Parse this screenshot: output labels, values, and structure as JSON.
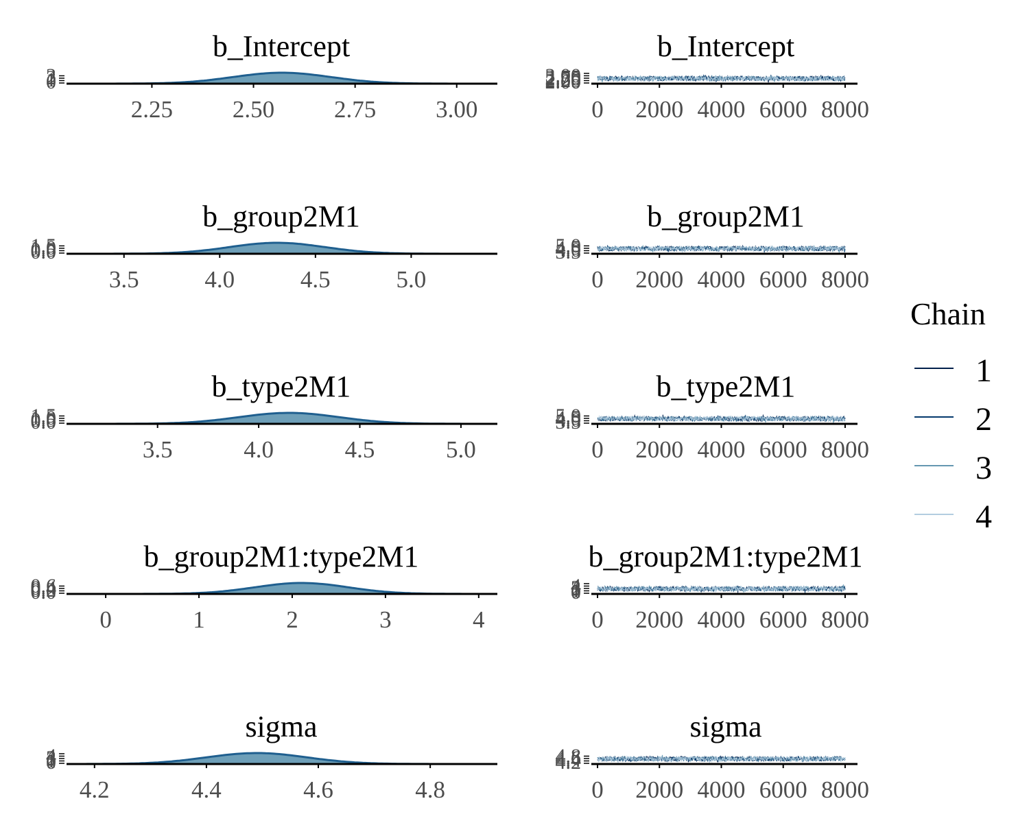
{
  "legend": {
    "title": "Chain",
    "entries": [
      {
        "label": "1",
        "color": "#011f4b"
      },
      {
        "label": "2",
        "color": "#03396c"
      },
      {
        "label": "3",
        "color": "#6497b1"
      },
      {
        "label": "4",
        "color": "#b3cde0"
      }
    ]
  },
  "colors": {
    "density_fill": "#6e9fb8",
    "density_line": "#1f5f8f",
    "axis": "#000000",
    "tick_label": "#4d4d4d",
    "title": "#000000"
  },
  "chart_data": [
    {
      "type": "area",
      "panel": "density",
      "title": "b_Intercept",
      "xlim": [
        2.04,
        3.1
      ],
      "x_ticks": [
        "2.25",
        "2.50",
        "2.75",
        "3.00"
      ],
      "x_tick_values": [
        2.25,
        2.5,
        2.75,
        3.0
      ],
      "y_ticks": [
        "0",
        "1",
        "2",
        "3"
      ],
      "density": {
        "mean": 2.57,
        "sd": 0.12
      }
    },
    {
      "type": "line",
      "panel": "trace",
      "title": "b_Intercept",
      "x_ticks": [
        "0",
        "2000",
        "4000",
        "6000",
        "8000"
      ],
      "x_tick_values": [
        0,
        2000,
        4000,
        6000,
        8000
      ],
      "xlim": [
        -200,
        8400
      ],
      "y_ticks": [
        "2.00",
        "2.25",
        "2.50",
        "2.75",
        "3.00"
      ],
      "iterations": 8000
    },
    {
      "type": "area",
      "panel": "density",
      "title": "b_group2M1",
      "xlim": [
        3.2,
        5.45
      ],
      "x_ticks": [
        "3.5",
        "4.0",
        "4.5",
        "5.0"
      ],
      "x_tick_values": [
        3.5,
        4.0,
        4.5,
        5.0
      ],
      "y_ticks": [
        "0.0",
        "0.5",
        "1.0",
        "1.5"
      ],
      "density": {
        "mean": 4.3,
        "sd": 0.25
      }
    },
    {
      "type": "line",
      "panel": "trace",
      "title": "b_group2M1",
      "x_ticks": [
        "0",
        "2000",
        "4000",
        "6000",
        "8000"
      ],
      "x_tick_values": [
        0,
        2000,
        4000,
        6000,
        8000
      ],
      "xlim": [
        -200,
        8400
      ],
      "y_ticks": [
        "3.5",
        "4.0",
        "4.5",
        "5.0"
      ],
      "iterations": 8000
    },
    {
      "type": "area",
      "panel": "density",
      "title": "b_type2M1",
      "xlim": [
        3.05,
        5.18
      ],
      "x_ticks": [
        "3.5",
        "4.0",
        "4.5",
        "5.0"
      ],
      "x_tick_values": [
        3.5,
        4.0,
        4.5,
        5.0
      ],
      "y_ticks": [
        "0.0",
        "0.5",
        "1.0",
        "1.5"
      ],
      "density": {
        "mean": 4.15,
        "sd": 0.25
      }
    },
    {
      "type": "line",
      "panel": "trace",
      "title": "b_type2M1",
      "x_ticks": [
        "0",
        "2000",
        "4000",
        "6000",
        "8000"
      ],
      "x_tick_values": [
        0,
        2000,
        4000,
        6000,
        8000
      ],
      "xlim": [
        -200,
        8400
      ],
      "y_ticks": [
        "3.5",
        "4.0",
        "4.5",
        "5.0"
      ],
      "iterations": 8000
    },
    {
      "type": "area",
      "panel": "density",
      "title": "b_group2M1:type2M1",
      "xlim": [
        -0.42,
        4.2
      ],
      "x_ticks": [
        "0",
        "1",
        "2",
        "3",
        "4"
      ],
      "x_tick_values": [
        0,
        1,
        2,
        3,
        4
      ],
      "y_ticks": [
        "0.0",
        "0.2",
        "0.4",
        "0.6"
      ],
      "density": {
        "mean": 2.1,
        "sd": 0.5
      }
    },
    {
      "type": "line",
      "panel": "trace",
      "title": "b_group2M1:type2M1",
      "x_ticks": [
        "0",
        "2000",
        "4000",
        "6000",
        "8000"
      ],
      "x_tick_values": [
        0,
        2000,
        4000,
        6000,
        8000
      ],
      "xlim": [
        -200,
        8400
      ],
      "y_ticks": [
        "0",
        "1",
        "2",
        "3",
        "4"
      ],
      "iterations": 8000
    },
    {
      "type": "area",
      "panel": "density",
      "title": "sigma",
      "xlim": [
        4.15,
        4.92
      ],
      "x_ticks": [
        "4.2",
        "4.4",
        "4.6",
        "4.8"
      ],
      "x_tick_values": [
        4.2,
        4.4,
        4.6,
        4.8
      ],
      "y_ticks": [
        "0",
        "1",
        "2",
        "3",
        "4"
      ],
      "density": {
        "mean": 4.49,
        "sd": 0.09
      }
    },
    {
      "type": "line",
      "panel": "trace",
      "title": "sigma",
      "x_ticks": [
        "0",
        "2000",
        "4000",
        "6000",
        "8000"
      ],
      "x_tick_values": [
        0,
        2000,
        4000,
        6000,
        8000
      ],
      "xlim": [
        -200,
        8400
      ],
      "y_ticks": [
        "4.2",
        "4.4",
        "4.6",
        "4.8"
      ],
      "iterations": 8000
    }
  ]
}
